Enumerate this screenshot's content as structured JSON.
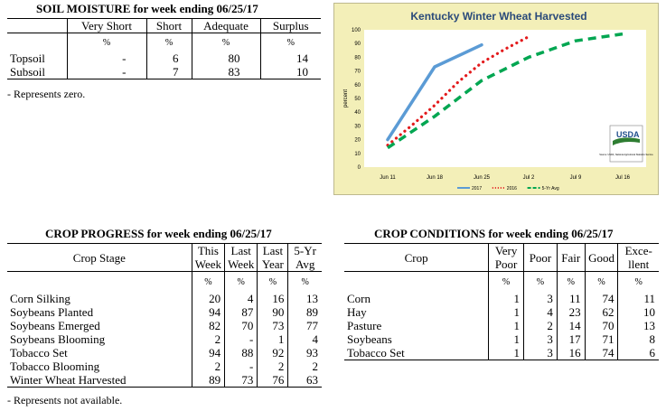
{
  "soil": {
    "title": "SOIL MOISTURE for week ending 06/25/17",
    "headers": [
      "",
      "Very Short",
      "Short",
      "Adequate",
      "Surplus"
    ],
    "unit": "%",
    "rows": [
      [
        "Topsoil",
        "-",
        "6",
        "80",
        "14"
      ],
      [
        "Subsoil",
        "-",
        "7",
        "83",
        "10"
      ]
    ],
    "note": "- Represents zero."
  },
  "progress": {
    "title": "CROP PROGRESS for week ending 06/25/17",
    "header_stage": "Crop Stage",
    "h1a": "This",
    "h1b": "Week",
    "h2a": "Last",
    "h2b": "Week",
    "h3a": "Last",
    "h3b": "Year",
    "h4a": "5-Yr",
    "h4b": "Avg",
    "unit": "%",
    "rows": [
      [
        "Corn Silking",
        "20",
        "4",
        "16",
        "13"
      ],
      [
        "Soybeans Planted",
        "94",
        "87",
        "90",
        "89"
      ],
      [
        "Soybeans Emerged",
        "82",
        "70",
        "73",
        "77"
      ],
      [
        "Soybeans Blooming",
        "2",
        "-",
        "1",
        "4"
      ],
      [
        "Tobacco Set",
        "94",
        "88",
        "92",
        "93"
      ],
      [
        "Tobacco Blooming",
        "2",
        "-",
        "2",
        "2"
      ],
      [
        "Winter Wheat Harvested",
        "89",
        "73",
        "76",
        "63"
      ]
    ],
    "note": "- Represents not available."
  },
  "conditions": {
    "title": "CROP CONDITIONS for week ending 06/25/17",
    "header_crop": "Crop",
    "vp_a": "Very",
    "vp_b": "Poor",
    "poor": "Poor",
    "fair": "Fair",
    "good": "Good",
    "ex_a": "Exce-",
    "ex_b": "llent",
    "unit": "%",
    "rows": [
      [
        "Corn",
        "1",
        "3",
        "11",
        "74",
        "11"
      ],
      [
        "Hay",
        "1",
        "4",
        "23",
        "62",
        "10"
      ],
      [
        "Pasture",
        "1",
        "2",
        "14",
        "70",
        "13"
      ],
      [
        "Soybeans",
        "1",
        "3",
        "17",
        "71",
        "8"
      ],
      [
        "Tobacco Set",
        "1",
        "3",
        "16",
        "74",
        "6"
      ]
    ]
  },
  "chart_data": {
    "type": "line",
    "title": "Kentucky Winter Wheat Harvested",
    "ylabel": "percent",
    "xlabel": "",
    "categories": [
      "Jun 11",
      "Jun 18",
      "Jun 25",
      "Jul 2",
      "Jul 9",
      "Jul 16"
    ],
    "ylim": [
      0,
      100
    ],
    "yticks": [
      0,
      10,
      20,
      30,
      40,
      50,
      60,
      70,
      80,
      90,
      100
    ],
    "grid": false,
    "legend_position": "bottom",
    "series": [
      {
        "name": "2017",
        "color": "#5b9bd5",
        "style": "solid",
        "points": [
          [
            0,
            20
          ],
          [
            1,
            73
          ],
          [
            2,
            89
          ]
        ]
      },
      {
        "name": "2016",
        "color": "#e31a1c",
        "style": "dotted",
        "points": [
          [
            0,
            16
          ],
          [
            0.5,
            30
          ],
          [
            1,
            45
          ],
          [
            1.5,
            62
          ],
          [
            2,
            76
          ],
          [
            2.5,
            86
          ],
          [
            3,
            95
          ]
        ]
      },
      {
        "name": "5-Yr Avg",
        "color": "#00a651",
        "style": "dashed",
        "points": [
          [
            0,
            14
          ],
          [
            1,
            37
          ],
          [
            2,
            63
          ],
          [
            3,
            80
          ],
          [
            4,
            92
          ],
          [
            5,
            97
          ]
        ]
      }
    ],
    "logo_text": "USDA",
    "source_text": "Source: USDA, National Agricultural Statistics Service"
  }
}
